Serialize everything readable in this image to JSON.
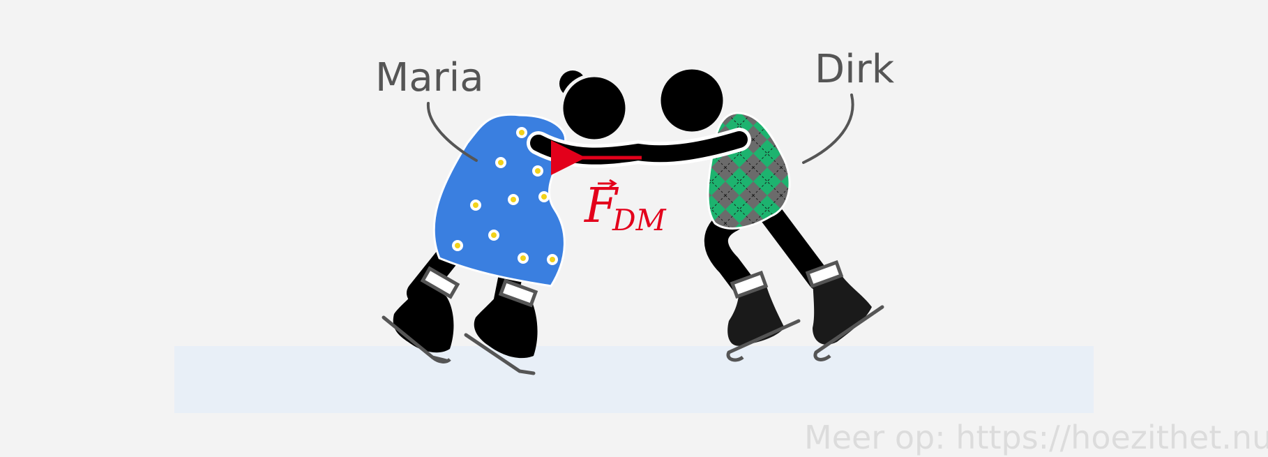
{
  "labels": {
    "maria": "Maria",
    "dirk": "Dirk"
  },
  "force": {
    "symbol": "F",
    "subscript": "DM",
    "color": "#e3001b"
  },
  "credit": "Meer op: https://hoezithet.nu",
  "colors": {
    "background": "#f3f3f3",
    "ice": "#e8eff7",
    "maria_dress": "#3a7fe0",
    "dirk_sweater_dark": "#6b6b6b",
    "dirk_sweater_green": "#1db36f",
    "body": "#000000",
    "label": "#555555"
  }
}
